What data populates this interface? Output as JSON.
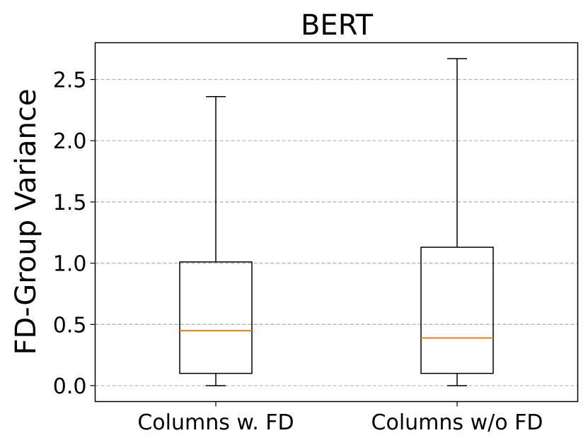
{
  "chart_data": {
    "type": "box",
    "title": "BERT",
    "xlabel": "",
    "ylabel": "FD-Group Variance",
    "ylim": [
      -0.13,
      2.8
    ],
    "yticks": [
      0.0,
      0.5,
      1.0,
      1.5,
      2.0,
      2.5
    ],
    "ytick_labels": [
      "0.0",
      "0.5",
      "1.0",
      "1.5",
      "2.0",
      "2.5"
    ],
    "grid": "y-dashed",
    "categories": [
      "Columns w. FD",
      "Columns w/o FD"
    ],
    "boxes": [
      {
        "category": "Columns w. FD",
        "whisker_low": 0.0,
        "q1": 0.1,
        "median": 0.45,
        "q3": 1.01,
        "whisker_high": 2.36
      },
      {
        "category": "Columns w/o FD",
        "whisker_low": 0.0,
        "q1": 0.1,
        "median": 0.39,
        "q3": 1.13,
        "whisker_high": 2.67
      }
    ],
    "colors": {
      "box": "#000000",
      "median": "#ff7f0e",
      "grid": "#b0b0b0"
    }
  }
}
